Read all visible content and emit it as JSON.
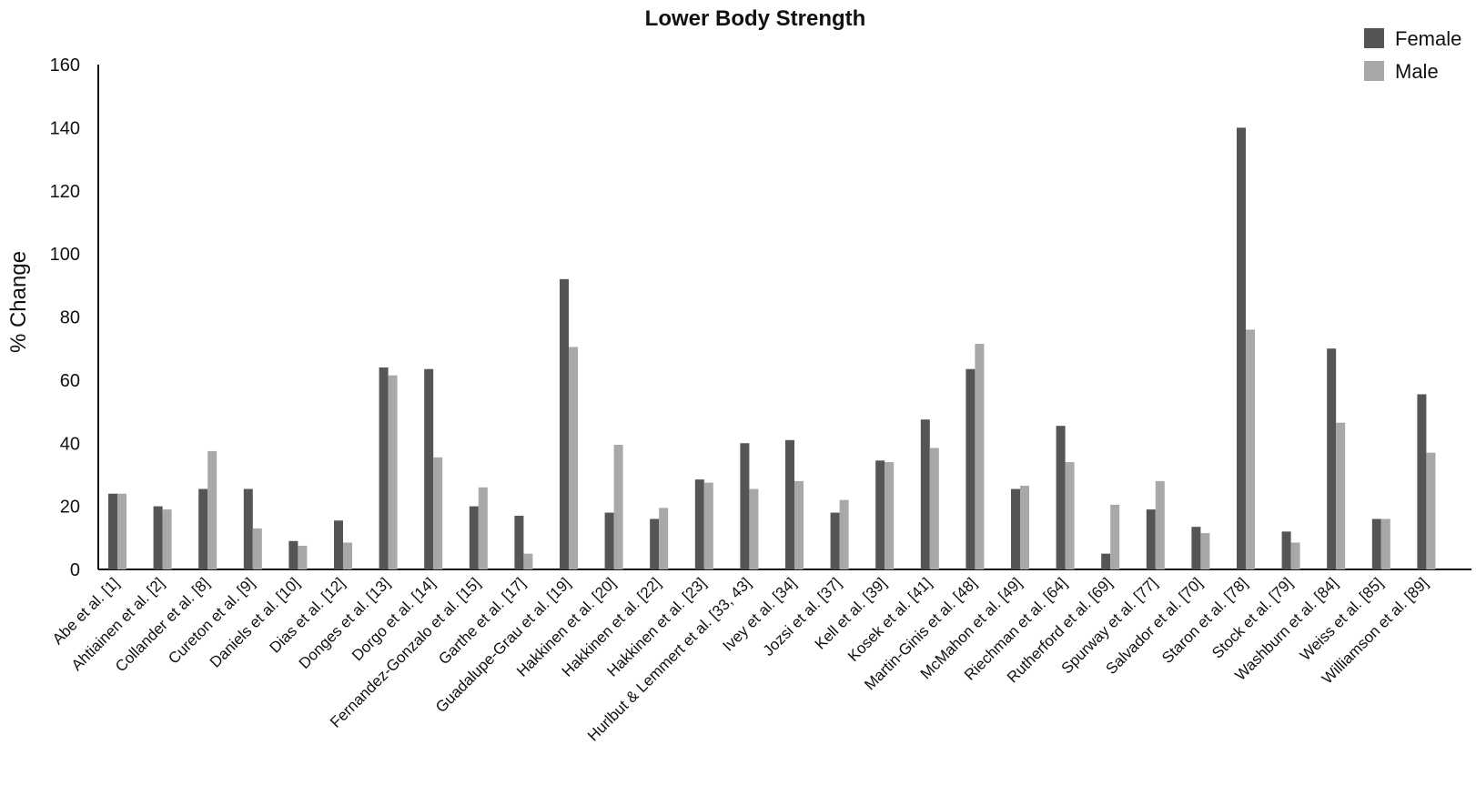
{
  "chart_data": {
    "type": "bar",
    "title": "Lower Body Strength",
    "ylabel": "% Change",
    "xlabel": "",
    "ylim": [
      0,
      160
    ],
    "yticks": [
      0,
      20,
      40,
      60,
      80,
      100,
      120,
      140,
      160
    ],
    "grid": false,
    "legend_position": "top-right",
    "categories": [
      "Abe et al. [1]",
      "Ahtiainen et al. [2]",
      "Collander et al. [8]",
      "Cureton et al. [9]",
      "Daniels et al. [10]",
      "Dias et al. [12]",
      "Donges et al. [13]",
      "Dorgo et al. [14]",
      "Fernandez-Gonzalo et al. [15]",
      "Garthe et al. [17]",
      "Guadalupe-Grau et al. [19]",
      "Hakkinen et al. [20]",
      "Hakkinen et al. [22]",
      "Hakkinen et al. [23]",
      "Hurlbut & Lemmert et al. [33, 43]",
      "Ivey et al. [34]",
      "Jozsi et al. [37]",
      "Kell et al. [39]",
      "Kosek et al. [41]",
      "Martin-Ginis et al. [48]",
      "McMahon et al. [49]",
      "Riechman et al. [64]",
      "Rutherford et al. [69]",
      "Spurway et al. [77]",
      "Salvador et al. [70]",
      "Staron et al. [78]",
      "Stock et al. [79]",
      "Washburn et al. [84]",
      "Weiss et al. [85]",
      "Williamson et al. [89]"
    ],
    "series": [
      {
        "name": "Female",
        "color": "#555555",
        "values": [
          24,
          20,
          25.5,
          25.5,
          9,
          15.5,
          64,
          63.5,
          20,
          17,
          92,
          18,
          16,
          28.5,
          40,
          41,
          18,
          34.5,
          47.5,
          63.5,
          25.5,
          45.5,
          5,
          19,
          13.5,
          140,
          12,
          70,
          16,
          55.5
        ]
      },
      {
        "name": "Male",
        "color": "#a8a8a8",
        "values": [
          24,
          19,
          37.5,
          13,
          7.5,
          8.5,
          61.5,
          35.5,
          26,
          5,
          70.5,
          39.5,
          19.5,
          27.5,
          25.5,
          28,
          22,
          34,
          38.5,
          71.5,
          26.5,
          34,
          20.5,
          28,
          11.5,
          76,
          8.5,
          46.5,
          16,
          37
        ]
      }
    ]
  }
}
